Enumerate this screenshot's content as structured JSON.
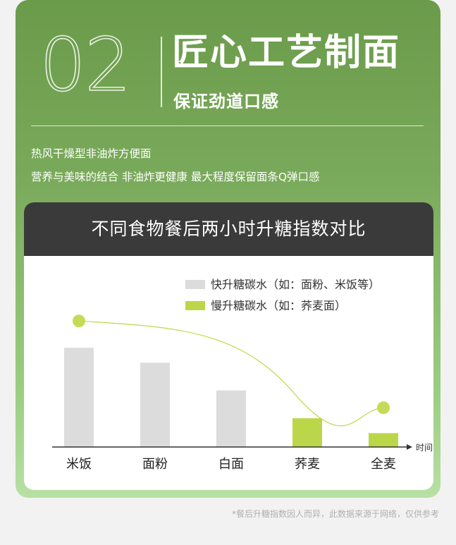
{
  "header": {
    "number": "02",
    "title": "匠心工艺制面",
    "subtitle": "保证劲道口感",
    "desc_line1": "热风干燥型非油炸方便面",
    "desc_line2": "营养与美味的结合 非油炸更健康 最大程度保留面条Q弹口感"
  },
  "footnote": "*餐后升糖指数因人而异，此数据来源于网络，仅供参考",
  "colors": {
    "fast": "#dcdcdc",
    "slow": "#bcd64a",
    "curve": "#c4db58",
    "header_bg": "#3a3a3a"
  },
  "chart_data": {
    "type": "bar",
    "title": "不同食物餐后两小时升糖指数对比",
    "xlabel": "时间",
    "ylabel": "",
    "categories": [
      "米饭",
      "面粉",
      "白面",
      "荞麦",
      "全麦"
    ],
    "values": [
      100,
      85,
      57,
      29,
      14
    ],
    "bar_group": [
      "fast",
      "fast",
      "fast",
      "slow",
      "slow"
    ],
    "legend": [
      {
        "key": "fast",
        "label": "快升糖碳水（如：面粉、米饭等）"
      },
      {
        "key": "slow",
        "label": "慢升糖碳水（如：荞麦面）"
      }
    ],
    "legend_position": "top-right",
    "trend_line": true,
    "grid": false,
    "ylim": [
      0,
      140
    ]
  }
}
